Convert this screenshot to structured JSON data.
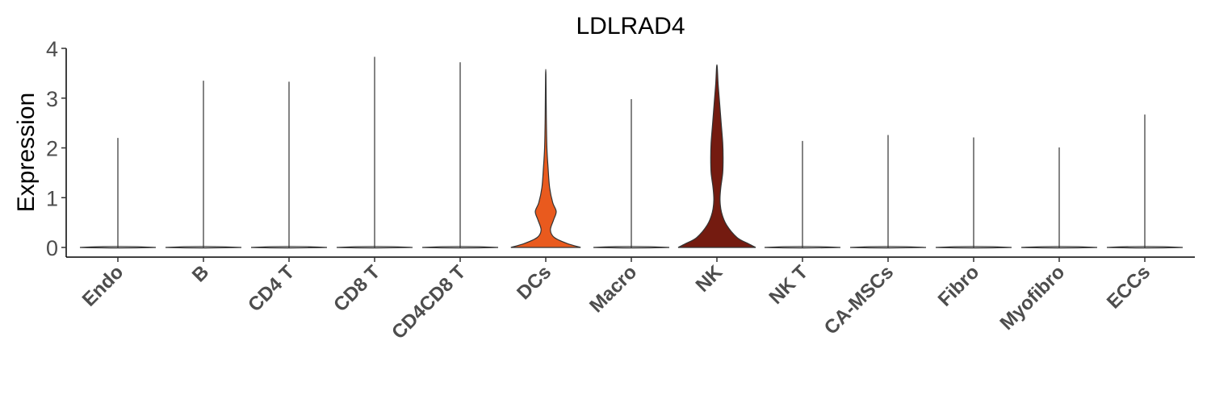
{
  "chart_data": {
    "type": "violin",
    "title": "LDLRAD4",
    "xlabel": "",
    "ylabel": "Expression",
    "ylim": [
      0,
      4
    ],
    "yticks": [
      "0",
      "1",
      "2",
      "3",
      "4"
    ],
    "grid": false,
    "legend": "none",
    "categories": [
      "Endo",
      "B",
      "CD4 T",
      "CD8 T",
      "CD4CD8 T",
      "DCs",
      "Macro",
      "NK",
      "NK T",
      "CA-MSCs",
      "Fibro",
      "Myofibro",
      "ECCs"
    ],
    "max_values": [
      2.2,
      3.35,
      3.33,
      3.83,
      3.72,
      3.47,
      2.98,
      3.63,
      2.14,
      2.26,
      2.21,
      2.01,
      2.67
    ],
    "fill_colors": [
      "#ffffff",
      "#ffffff",
      "#ffffff",
      "#ffffff",
      "#ffffff",
      "#e95a1e",
      "#ffffff",
      "#741b10",
      "#ffffff",
      "#ffffff",
      "#ffffff",
      "#ffffff",
      "#ffffff"
    ],
    "density_profiles": {
      "DCs": [
        [
          0,
          0.9
        ],
        [
          0.08,
          0.55
        ],
        [
          0.2,
          0.22
        ],
        [
          0.35,
          0.12
        ],
        [
          0.55,
          0.2
        ],
        [
          0.72,
          0.27
        ],
        [
          0.9,
          0.18
        ],
        [
          1.2,
          0.1
        ],
        [
          1.6,
          0.06
        ],
        [
          2.0,
          0.03
        ],
        [
          2.6,
          0.015
        ],
        [
          3.47,
          0.005
        ]
      ],
      "NK": [
        [
          0,
          1.0
        ],
        [
          0.08,
          0.8
        ],
        [
          0.2,
          0.52
        ],
        [
          0.45,
          0.25
        ],
        [
          0.7,
          0.12
        ],
        [
          0.95,
          0.08
        ],
        [
          1.2,
          0.1
        ],
        [
          1.5,
          0.15
        ],
        [
          1.8,
          0.16
        ],
        [
          2.1,
          0.15
        ],
        [
          2.5,
          0.11
        ],
        [
          3.0,
          0.06
        ],
        [
          3.3,
          0.03
        ],
        [
          3.63,
          0.008
        ]
      ]
    }
  }
}
